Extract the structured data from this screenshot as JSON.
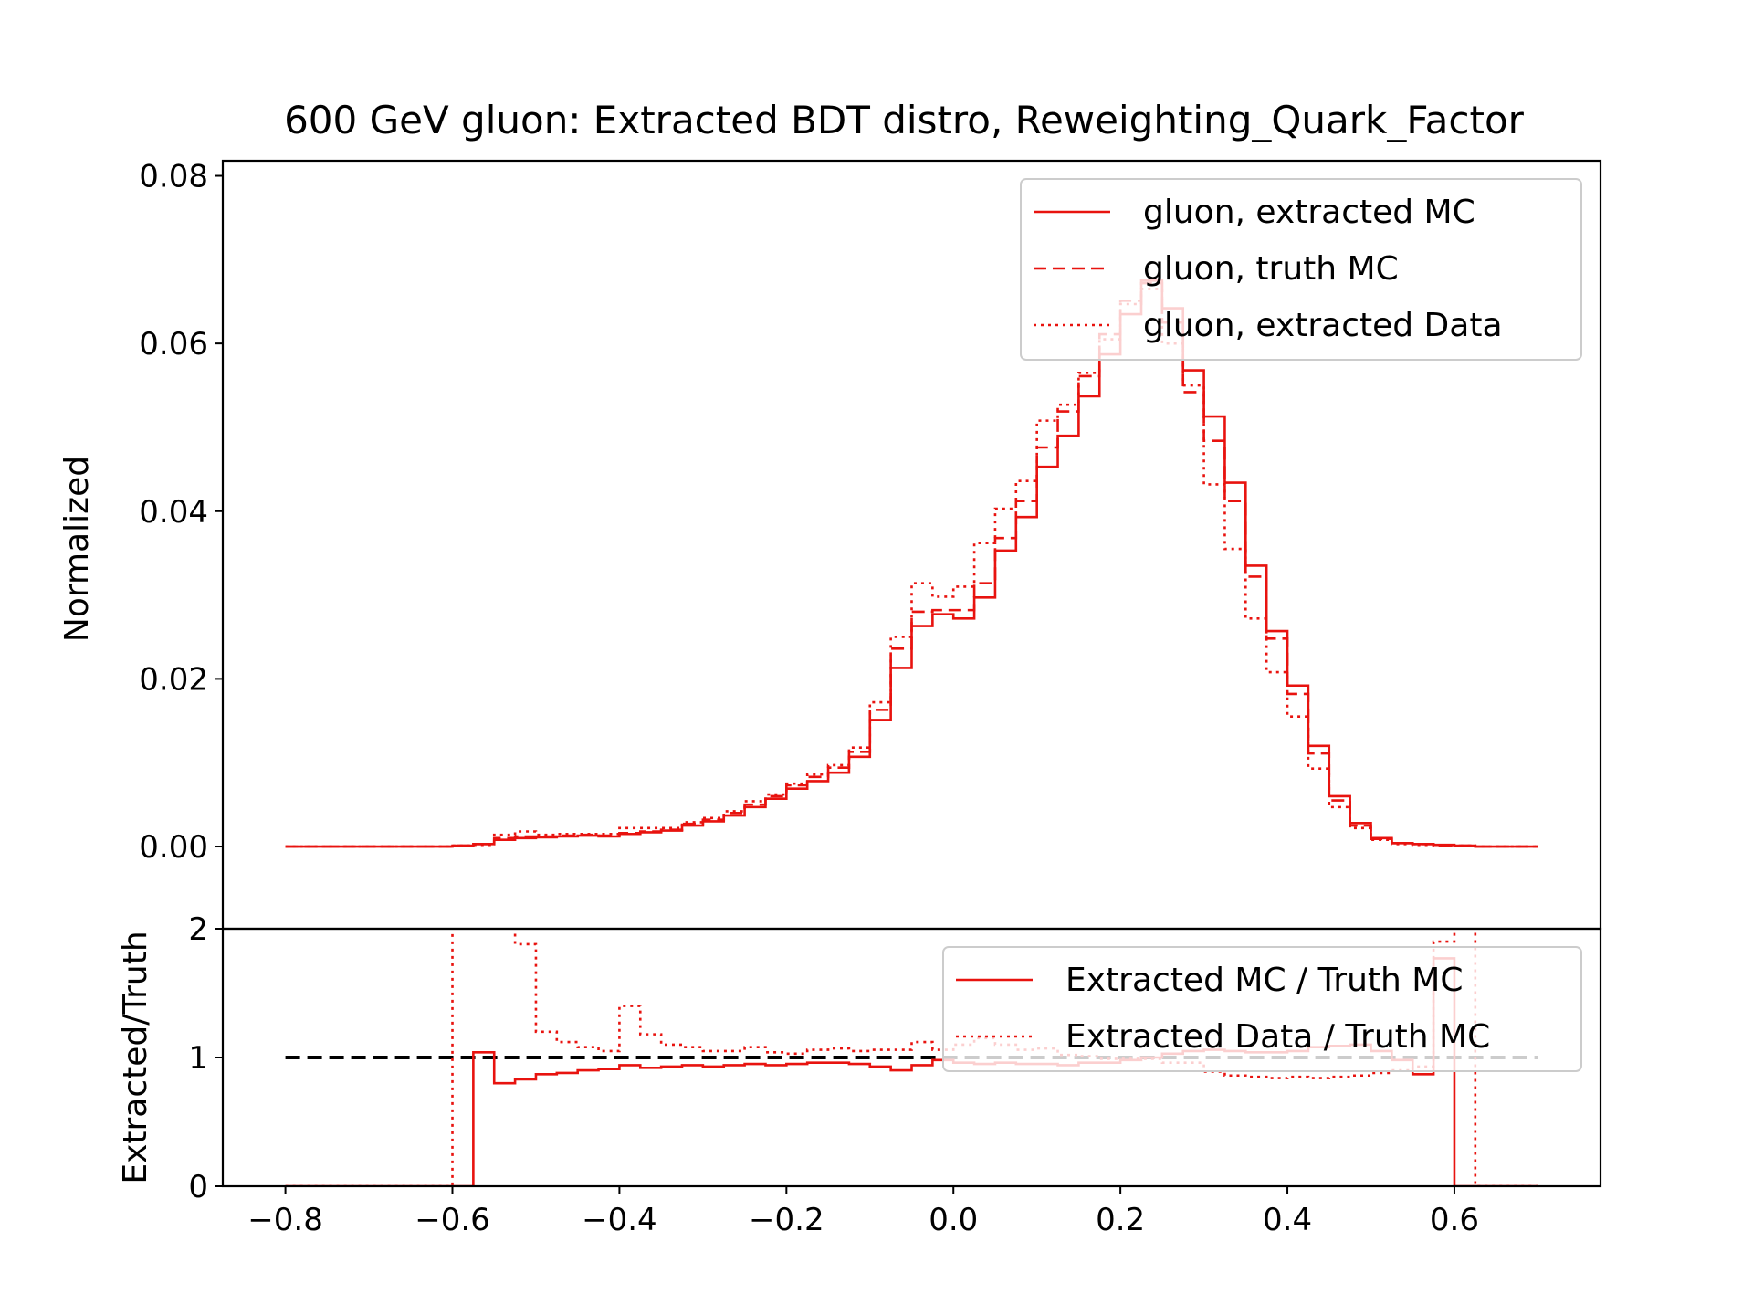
{
  "colors": {
    "series": "#e8130f",
    "reference": "#000000",
    "axis": "#000000",
    "legend_border": "#cccccc"
  },
  "chart_data": [
    {
      "type": "line",
      "subtype": "step-histogram",
      "title": "600 GeV gluon: Extracted BDT distro, Reweighting_Quark_Factor",
      "xlabel": "",
      "ylabel": "Normalized",
      "xlim": [
        -0.875,
        0.775
      ],
      "ylim": [
        -0.0098,
        0.0818
      ],
      "yticks": [
        0.0,
        0.02,
        0.04,
        0.06,
        0.08
      ],
      "ytick_labels": [
        "0.00",
        "0.02",
        "0.04",
        "0.06",
        "0.08"
      ],
      "legend": {
        "placement": "top-right"
      },
      "bin_edges": [
        -0.8,
        -0.775,
        -0.75,
        -0.725,
        -0.7,
        -0.675,
        -0.65,
        -0.625,
        -0.6,
        -0.575,
        -0.55,
        -0.525,
        -0.5,
        -0.475,
        -0.45,
        -0.425,
        -0.4,
        -0.375,
        -0.35,
        -0.325,
        -0.3,
        -0.275,
        -0.25,
        -0.225,
        -0.2,
        -0.175,
        -0.15,
        -0.125,
        -0.1,
        -0.075,
        -0.05,
        -0.025,
        0.0,
        0.025,
        0.05,
        0.075,
        0.1,
        0.125,
        0.15,
        0.175,
        0.2,
        0.225,
        0.25,
        0.275,
        0.3,
        0.325,
        0.35,
        0.375,
        0.4,
        0.425,
        0.45,
        0.475,
        0.5,
        0.525,
        0.55,
        0.575,
        0.6,
        0.625,
        0.65,
        0.675,
        0.7
      ],
      "series": [
        {
          "name": "gluon, extracted MC",
          "style": "solid",
          "values": [
            0,
            0,
            0,
            0,
            0,
            0,
            0,
            0,
            0.0001,
            0.0003,
            0.0008,
            0.001,
            0.0011,
            0.0012,
            0.0013,
            0.0012,
            0.0015,
            0.0017,
            0.0019,
            0.0025,
            0.003,
            0.0037,
            0.0047,
            0.0057,
            0.0069,
            0.0078,
            0.0088,
            0.0107,
            0.0151,
            0.0213,
            0.0263,
            0.0277,
            0.0272,
            0.0297,
            0.0353,
            0.0393,
            0.0453,
            0.049,
            0.0537,
            0.0587,
            0.0635,
            0.0675,
            0.0642,
            0.0568,
            0.0513,
            0.0434,
            0.0335,
            0.0257,
            0.0192,
            0.012,
            0.006,
            0.0028,
            0.001,
            0.0004,
            0.0003,
            0.0002,
            0.0001,
            0,
            0,
            0
          ]
        },
        {
          "name": "gluon, truth MC",
          "style": "dashed",
          "values": [
            0,
            0,
            0,
            0,
            0,
            0,
            0,
            0,
            0.0001,
            0.0003,
            0.001,
            0.0012,
            0.0012,
            0.0013,
            0.0014,
            0.0013,
            0.0016,
            0.0018,
            0.002,
            0.0027,
            0.0032,
            0.004,
            0.005,
            0.006,
            0.0073,
            0.0083,
            0.0094,
            0.0113,
            0.0163,
            0.0236,
            0.028,
            0.0282,
            0.0282,
            0.0314,
            0.0368,
            0.0412,
            0.0476,
            0.0519,
            0.0561,
            0.0611,
            0.0651,
            0.0672,
            0.0625,
            0.0542,
            0.0484,
            0.0412,
            0.0322,
            0.0248,
            0.0182,
            0.0111,
            0.0055,
            0.0025,
            0.0009,
            0.0004,
            0.0003,
            0.0001,
            0.0001,
            0,
            0,
            0
          ]
        },
        {
          "name": "gluon, extracted Data",
          "style": "dotted",
          "values": [
            0,
            0,
            0,
            0,
            0,
            0,
            0,
            0,
            0.0001,
            0.0002,
            0.0014,
            0.0018,
            0.0014,
            0.0015,
            0.0015,
            0.0015,
            0.0022,
            0.0022,
            0.0022,
            0.0029,
            0.0034,
            0.0042,
            0.0054,
            0.0062,
            0.0075,
            0.0086,
            0.0097,
            0.0118,
            0.0172,
            0.025,
            0.0314,
            0.0298,
            0.031,
            0.0362,
            0.0403,
            0.0436,
            0.0508,
            0.0527,
            0.0565,
            0.0605,
            0.0647,
            0.0665,
            0.06,
            0.055,
            0.0432,
            0.0355,
            0.0272,
            0.0208,
            0.0155,
            0.0093,
            0.0047,
            0.0022,
            0.0008,
            0.0003,
            0.0002,
            0.0001,
            0.0001,
            0,
            0,
            0
          ]
        }
      ]
    },
    {
      "type": "line",
      "subtype": "step-ratio",
      "xlabel": "",
      "ylabel": "Extracted/Truth",
      "xlim": [
        -0.875,
        0.775
      ],
      "ylim": [
        0,
        2
      ],
      "yticks": [
        0,
        1,
        2
      ],
      "ytick_labels": [
        "0",
        "1",
        "2"
      ],
      "xticks": [
        -0.8,
        -0.6,
        -0.4,
        -0.2,
        0.0,
        0.2,
        0.4,
        0.6
      ],
      "xtick_labels": [
        "−0.8",
        "−0.6",
        "−0.4",
        "−0.2",
        "0.0",
        "0.2",
        "0.4",
        "0.6"
      ],
      "reference_line": {
        "y": 1.0,
        "x_range": [
          -0.8,
          0.7
        ],
        "style": "dashed"
      },
      "legend": {
        "placement": "top-right"
      },
      "bin_edges": [
        -0.8,
        -0.775,
        -0.75,
        -0.725,
        -0.7,
        -0.675,
        -0.65,
        -0.625,
        -0.6,
        -0.575,
        -0.55,
        -0.525,
        -0.5,
        -0.475,
        -0.45,
        -0.425,
        -0.4,
        -0.375,
        -0.35,
        -0.325,
        -0.3,
        -0.275,
        -0.25,
        -0.225,
        -0.2,
        -0.175,
        -0.15,
        -0.125,
        -0.1,
        -0.075,
        -0.05,
        -0.025,
        0.0,
        0.025,
        0.05,
        0.075,
        0.1,
        0.125,
        0.15,
        0.175,
        0.2,
        0.225,
        0.25,
        0.275,
        0.3,
        0.325,
        0.35,
        0.375,
        0.4,
        0.425,
        0.45,
        0.475,
        0.5,
        0.525,
        0.55,
        0.575,
        0.6,
        0.625,
        0.65,
        0.675,
        0.7
      ],
      "series": [
        {
          "name": "Extracted MC / Truth MC",
          "style": "solid",
          "values": [
            0,
            0,
            0,
            0,
            0,
            0,
            0,
            0,
            0,
            1.04,
            0.8,
            0.83,
            0.87,
            0.88,
            0.9,
            0.91,
            0.94,
            0.92,
            0.93,
            0.94,
            0.93,
            0.94,
            0.95,
            0.94,
            0.95,
            0.96,
            0.96,
            0.95,
            0.93,
            0.9,
            0.94,
            0.98,
            0.96,
            0.95,
            0.96,
            0.95,
            0.95,
            0.94,
            0.96,
            0.96,
            0.98,
            1.0,
            1.03,
            1.05,
            1.06,
            1.05,
            1.04,
            1.04,
            1.05,
            1.08,
            1.09,
            1.1,
            1.05,
            0.98,
            0.87,
            1.77,
            0,
            0,
            0,
            0
          ]
        },
        {
          "name": "Extracted Data / Truth MC",
          "style": "dotted",
          "values": [
            0,
            0,
            0,
            0,
            0,
            0,
            0,
            0,
            3.5,
            2.5,
            2.5,
            1.88,
            1.2,
            1.12,
            1.08,
            1.05,
            1.4,
            1.18,
            1.1,
            1.08,
            1.05,
            1.05,
            1.08,
            1.04,
            1.03,
            1.06,
            1.07,
            1.05,
            1.06,
            1.06,
            1.12,
            1.06,
            1.1,
            1.15,
            1.1,
            1.06,
            1.07,
            1.02,
            1.01,
            0.99,
            0.99,
            0.99,
            0.96,
            0.96,
            0.89,
            0.86,
            0.85,
            0.84,
            0.85,
            0.84,
            0.85,
            0.86,
            0.88,
            0.9,
            0.93,
            1.9,
            2.5,
            0,
            0,
            0
          ]
        }
      ]
    }
  ]
}
